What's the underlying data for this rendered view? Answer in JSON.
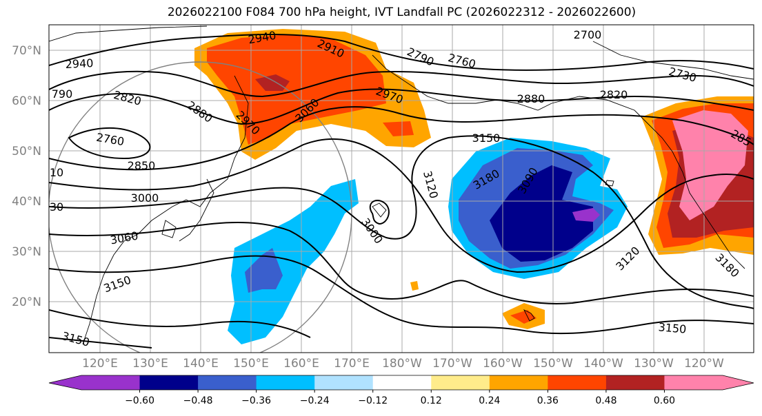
{
  "title": "2026022100 F084 700 hPa height, IVT Landfall PC (2026022312 - 2026022600)",
  "lat_labels": [
    "70°N",
    "60°N",
    "50°N",
    "40°N",
    "30°N",
    "20°N"
  ],
  "lon_labels": [
    "120°E",
    "130°E",
    "140°E",
    "150°E",
    "160°E",
    "170°E",
    "180°W",
    "170°W",
    "160°W",
    "150°W",
    "140°W",
    "130°W",
    "120°W"
  ],
  "contour_labels": [
    "2940",
    "2910",
    "2790",
    "2760",
    "2700",
    "2730",
    "2940",
    "790",
    "2820",
    "2880",
    "2970",
    "3060",
    "2970",
    "2880",
    "2820",
    "2760",
    "2850",
    "3150",
    "3180",
    "3090",
    "3120",
    "3000",
    "3060",
    "3150",
    "3000",
    "3120",
    "3180",
    "3150",
    "3150",
    "285",
    "10",
    "30"
  ],
  "colorbar": {
    "colors": [
      "#9932cc",
      "#00008b",
      "#3a5fcd",
      "#00bfff",
      "#b0e2ff",
      "#ffffff",
      "#ffec8b",
      "#ffa500",
      "#ff4500",
      "#b22222",
      "#ff82ab"
    ],
    "tick_labels": [
      "−0.60",
      "−0.48",
      "−0.36",
      "−0.24",
      "−0.12",
      "0.12",
      "0.24",
      "0.36",
      "0.48",
      "0.60"
    ]
  }
}
